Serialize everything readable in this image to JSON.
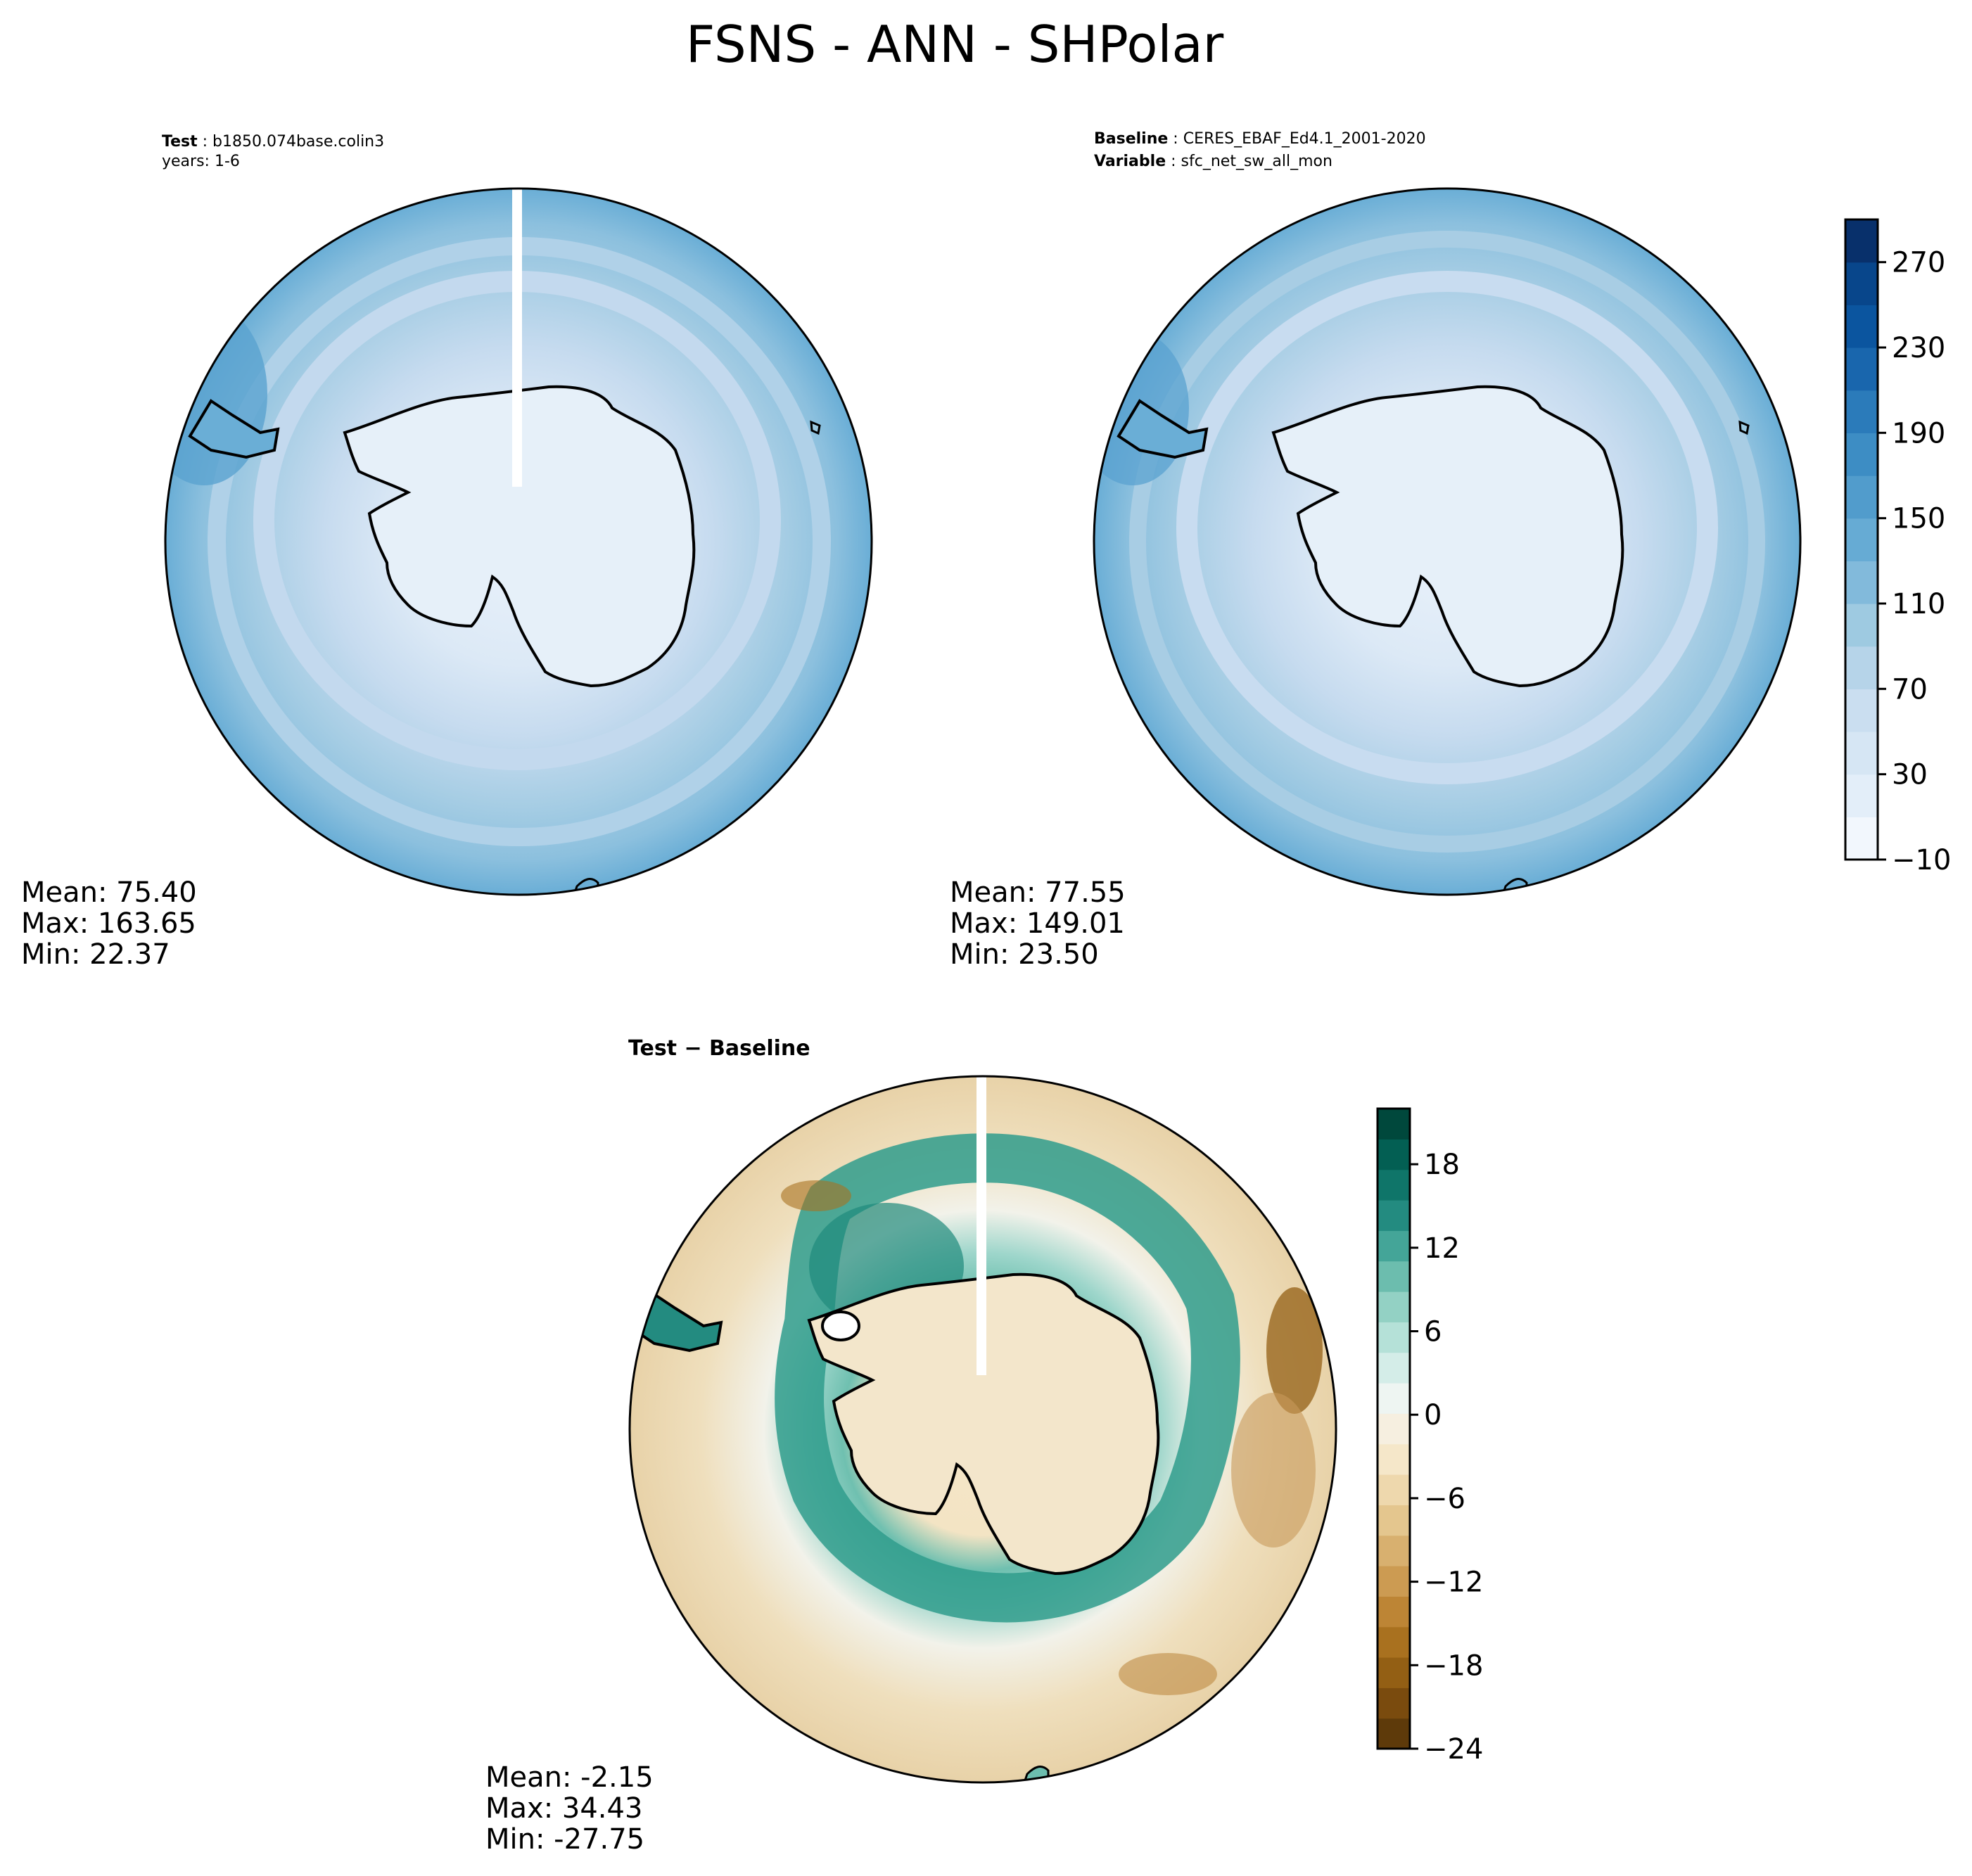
{
  "title": "FSNS - ANN - SHPolar",
  "panels": [
    {
      "id": "test",
      "meta": [
        {
          "key": "Test",
          "value": "b1850.074base.colin3"
        },
        {
          "key": "",
          "value": "years: 1-6"
        }
      ],
      "stats": {
        "mean": "Mean: 75.40",
        "max": "Max: 163.65",
        "min": "Min: 22.37"
      },
      "colormap": "Blues",
      "has_gap": true
    },
    {
      "id": "baseline",
      "meta": [
        {
          "key": "Baseline",
          "value": "CERES_EBAF_Ed4.1_2001-2020"
        },
        {
          "key": "Variable",
          "value": "sfc_net_sw_all_mon"
        }
      ],
      "stats": {
        "mean": "Mean: 77.55",
        "max": "Max: 149.01",
        "min": "Min: 23.50"
      },
      "colormap": "Blues",
      "has_gap": false
    },
    {
      "id": "diff",
      "title": "Test − Baseline",
      "stats": {
        "mean": "Mean: -2.15",
        "max": "Max: 34.43",
        "min": "Min: -27.75"
      },
      "colormap": "BrBG",
      "has_gap": true
    }
  ],
  "colorbars": {
    "main": {
      "min": -10,
      "max": 290,
      "ticks": [
        "270",
        "230",
        "190",
        "150",
        "110",
        "70",
        "30",
        "−10"
      ],
      "tick_values": [
        270,
        230,
        190,
        150,
        110,
        70,
        30,
        -10
      ],
      "colors": [
        "#f2f7fd",
        "#e3eef9",
        "#d6e6f4",
        "#cadef0",
        "#b6d4e9",
        "#9ecae1",
        "#82badb",
        "#66abd4",
        "#519ccc",
        "#3d8dc4",
        "#2b7bba",
        "#1966ad",
        "#0b559f",
        "#08468b",
        "#08306b"
      ]
    },
    "diff": {
      "min": -24,
      "max": 22,
      "ticks": [
        "18",
        "12",
        "6",
        "0",
        "−6",
        "−12",
        "−18",
        "−24"
      ],
      "tick_values": [
        18,
        12,
        6,
        0,
        -6,
        -12,
        -18,
        -24
      ],
      "colors": [
        "#5e3a0a",
        "#7a4b0e",
        "#935f14",
        "#a9711f",
        "#bd8535",
        "#cc9b52",
        "#d8b06f",
        "#e4c68e",
        "#eed8ad",
        "#f5e7c9",
        "#f6efe0",
        "#eef5f2",
        "#d4ede8",
        "#b5e1d8",
        "#93d1c4",
        "#6cbdae",
        "#44a598",
        "#238b80",
        "#0f7569",
        "#035f53",
        "#00483c"
      ]
    }
  }
}
